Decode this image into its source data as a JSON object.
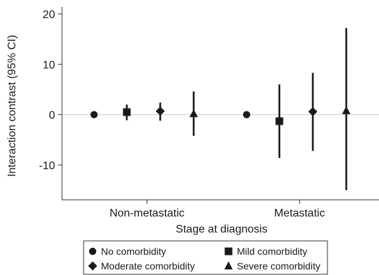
{
  "chart_data": {
    "type": "scatter",
    "subtype": "point-estimate-with-error-bars",
    "title": "",
    "xlabel": "Stage at diagnosis",
    "ylabel": "Interaction contrast (95% CI)",
    "categories": [
      "Non-metastatic",
      "Metastatic"
    ],
    "ylim": [
      -17,
      22
    ],
    "yticks": [
      20,
      10,
      0,
      -10
    ],
    "reference_line": 0,
    "grid": false,
    "legend_position": "bottom",
    "series": [
      {
        "name": "No comorbidity",
        "marker": "circle",
        "values": [
          {
            "category": "Non-metastatic",
            "estimate": 0,
            "lower": null,
            "upper": null
          },
          {
            "category": "Metastatic",
            "estimate": 0,
            "lower": null,
            "upper": null
          }
        ]
      },
      {
        "name": "Mild comorbidity",
        "marker": "square",
        "values": [
          {
            "category": "Non-metastatic",
            "estimate": 0.5,
            "lower": -1.1,
            "upper": 2.0
          },
          {
            "category": "Metastatic",
            "estimate": -1.3,
            "lower": -8.6,
            "upper": 6.0
          }
        ]
      },
      {
        "name": "Moderate comorbidity",
        "marker": "diamond",
        "values": [
          {
            "category": "Non-metastatic",
            "estimate": 0.7,
            "lower": -1.2,
            "upper": 2.4
          },
          {
            "category": "Metastatic",
            "estimate": 0.6,
            "lower": -7.2,
            "upper": 8.3
          }
        ]
      },
      {
        "name": "Severe comorbidity",
        "marker": "triangle",
        "values": [
          {
            "category": "Non-metastatic",
            "estimate": 0.2,
            "lower": -4.2,
            "upper": 4.6
          },
          {
            "category": "Metastatic",
            "estimate": 0.8,
            "lower": -15.0,
            "upper": 17.2
          }
        ]
      }
    ]
  },
  "colors": {
    "marks": "#1a1a1a",
    "axis": "#333333",
    "reference_line": "#cccccc",
    "background": "#ffffff"
  }
}
